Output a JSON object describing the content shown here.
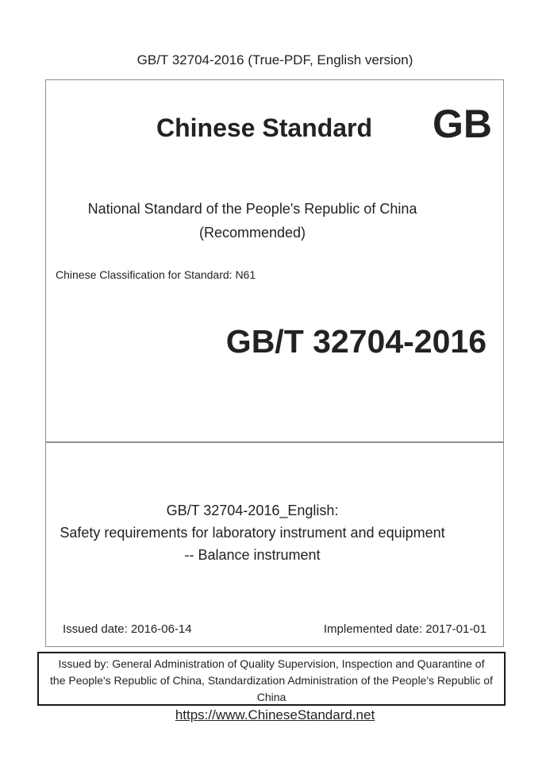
{
  "header": {
    "title": "GB/T 32704-2016 (True-PDF, English version)"
  },
  "cover_box": {
    "brand_title": "Chinese Standard",
    "logo": "GB",
    "subtitle": "National Standard of the People's Republic of China",
    "subtitle_note": "(Recommended)",
    "classification": "Chinese Classification for Standard: N61",
    "standard_number": "GB/T 32704-2016"
  },
  "title_box": {
    "line1": "GB/T 32704-2016_English:",
    "line2": "Safety requirements for laboratory instrument and equipment",
    "line3": "-- Balance instrument",
    "issued_date": "Issued date: 2016-06-14",
    "implemented_date": "Implemented date: 2017-01-01"
  },
  "issuer_box": {
    "lines": [
      "Issued by: General Administration of Quality Supervision, Inspection and Quarantine of",
      "the People's Republic of China, Standardization Administration of the People's Republic of",
      "China"
    ]
  },
  "footer": {
    "link": "https://www.ChineseStandard.net"
  },
  "colors": {
    "background": "#ffffff",
    "text": "#222222",
    "box_border": "#8f8f8f",
    "issuer_border": "#1a1a1a"
  }
}
